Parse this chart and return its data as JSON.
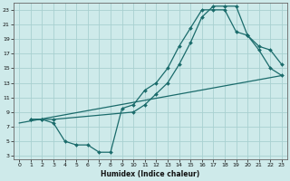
{
  "xlabel": "Humidex (Indice chaleur)",
  "bg_color": "#ceeaea",
  "grid_color": "#a8d0d0",
  "line_color": "#1a6b6b",
  "xlim": [
    -0.5,
    23.5
  ],
  "ylim": [
    2.5,
    24
  ],
  "xticks": [
    0,
    1,
    2,
    3,
    4,
    5,
    6,
    7,
    8,
    9,
    10,
    11,
    12,
    13,
    14,
    15,
    16,
    17,
    18,
    19,
    20,
    21,
    22,
    23
  ],
  "yticks": [
    3,
    5,
    7,
    9,
    11,
    13,
    15,
    17,
    19,
    21,
    23
  ],
  "curve1_x": [
    1,
    2,
    3,
    4,
    5,
    6,
    7,
    8,
    9,
    10,
    11,
    12,
    13,
    14,
    15,
    16,
    17,
    18,
    19,
    20,
    21,
    22,
    23
  ],
  "curve1_y": [
    8,
    8,
    7.5,
    5,
    4.5,
    4.5,
    3.5,
    3.5,
    9.5,
    10,
    12,
    13,
    15,
    18,
    20.5,
    23,
    23,
    23,
    20,
    19.5,
    18,
    17.5,
    15.5
  ],
  "curve2_x": [
    1,
    2,
    3,
    10,
    11,
    12,
    13,
    14,
    15,
    16,
    17,
    18,
    19,
    20,
    21,
    22,
    23
  ],
  "curve2_y": [
    8,
    8,
    8,
    9,
    10,
    11.5,
    13,
    15.5,
    18.5,
    22,
    23.5,
    23.5,
    23.5,
    19.5,
    17.5,
    15,
    14
  ],
  "curve3_x": [
    0,
    23
  ],
  "curve3_y": [
    7.5,
    14
  ]
}
